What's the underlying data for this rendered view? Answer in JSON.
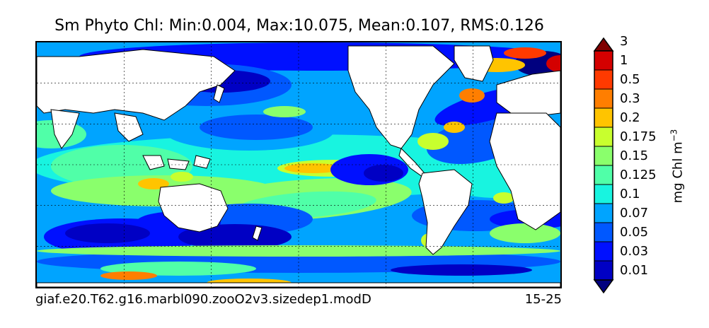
{
  "header": {
    "title": "Sm Phyto Chl: Min:0.004, Max:10.075, Mean:0.107, RMS:0.126"
  },
  "footer": {
    "run_name": "giaf.e20.T62.g16.marbl090.zooO2v3.sizedep1.modD",
    "depth_range": "15-25"
  },
  "chart_data": {
    "type": "heatmap",
    "title": "Sm Phyto Chl: Min:0.004, Max:10.075, Mean:0.107, RMS:0.126",
    "statistics": {
      "min": 0.004,
      "max": 10.075,
      "mean": 0.107,
      "rms": 0.126
    },
    "projection": "global cylindrical map with coastlines and dashed lat/lon grid",
    "grid": true,
    "colorbar": {
      "label": "mg Chl m^-3",
      "placement": "right",
      "extend": "both",
      "levels": [
        0.01,
        0.03,
        0.05,
        0.07,
        0.1,
        0.125,
        0.15,
        0.175,
        0.2,
        0.3,
        0.5,
        1,
        3
      ],
      "tick_labels": [
        "0.01",
        "0.03",
        "0.05",
        "0.07",
        "0.1",
        "0.125",
        "0.15",
        "0.175",
        "0.2",
        "0.3",
        "0.5",
        "1",
        "3"
      ],
      "colors": [
        "#00007f",
        "#0000c4",
        "#0010ff",
        "#0058ff",
        "#00a4ff",
        "#18f4e0",
        "#50ffa8",
        "#8aff6c",
        "#c8ff2e",
        "#ffc400",
        "#ff7e00",
        "#ff3a00",
        "#d40000",
        "#7f0000"
      ]
    },
    "land_color": "#ffffff"
  }
}
